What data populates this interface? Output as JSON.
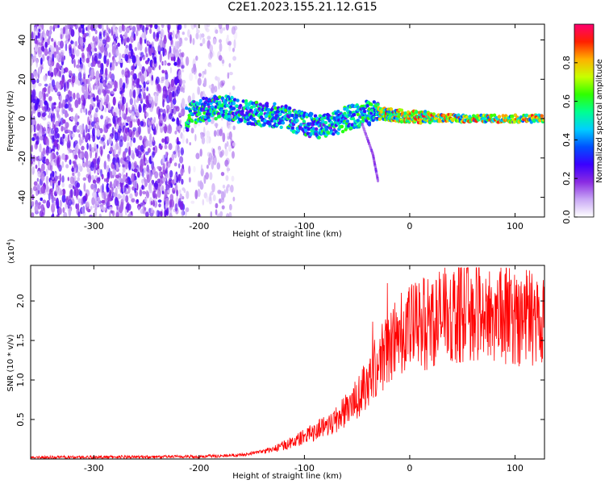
{
  "chart_data": [
    {
      "type": "heatmap",
      "title": "C2E1.2023.155.21.12.G15",
      "xlabel": "Height of straight line (km)",
      "ylabel": "Frequency (Hz)",
      "xlim": [
        -360,
        128
      ],
      "ylim": [
        -50,
        48
      ],
      "x_ticks": [
        -300,
        -200,
        -100,
        0,
        100
      ],
      "y_ticks": [
        -40,
        -20,
        0,
        20,
        40
      ],
      "colorbar": {
        "label": "Normalized spectral amplitude",
        "range": [
          0,
          1
        ],
        "ticks": [
          "0.0",
          "0.2",
          "0.4",
          "0.6",
          "0.8"
        ],
        "colors": [
          "#ffffff",
          "#c9a8f5",
          "#8a2be2",
          "#3a00ff",
          "#0050ff",
          "#00cfff",
          "#00ff90",
          "#30ff00",
          "#c8ff00",
          "#ffb000",
          "#ff2000",
          "#ff0070"
        ]
      },
      "features": {
        "noise_region_x": [
          -360,
          -165
        ],
        "signal_track": [
          {
            "x": -210,
            "y": 3
          },
          {
            "x": -180,
            "y": 6
          },
          {
            "x": -150,
            "y": 3
          },
          {
            "x": -120,
            "y": 1
          },
          {
            "x": -100,
            "y": -3
          },
          {
            "x": -80,
            "y": -4
          },
          {
            "x": -60,
            "y": 0
          },
          {
            "x": -40,
            "y": 3
          },
          {
            "x": -20,
            "y": 2
          },
          {
            "x": 0,
            "y": 1
          },
          {
            "x": 50,
            "y": 0
          },
          {
            "x": 128,
            "y": 0
          }
        ],
        "tail": [
          {
            "x": -45,
            "y": -3
          },
          {
            "x": -35,
            "y": -18
          },
          {
            "x": -30,
            "y": -32
          }
        ]
      }
    },
    {
      "type": "line",
      "xlabel": "Height of straight line (km)",
      "ylabel": "SNR (10 * v/v)",
      "scale_label": "(x10",
      "scale_exp": "4",
      "scale_close": ")",
      "xlim": [
        -360,
        128
      ],
      "ylim": [
        0,
        2.45
      ],
      "x_ticks": [
        -300,
        -200,
        -100,
        0,
        100
      ],
      "y_ticks": [
        "0.5",
        "1.0",
        "1.5",
        "2.0"
      ],
      "series": [
        {
          "color": "#ff0000",
          "envelope": [
            {
              "x": -360,
              "y": 0.02
            },
            {
              "x": -200,
              "y": 0.03
            },
            {
              "x": -160,
              "y": 0.05
            },
            {
              "x": -130,
              "y": 0.12
            },
            {
              "x": -110,
              "y": 0.22
            },
            {
              "x": -90,
              "y": 0.35
            },
            {
              "x": -70,
              "y": 0.5
            },
            {
              "x": -50,
              "y": 0.75
            },
            {
              "x": -40,
              "y": 1.0
            },
            {
              "x": -30,
              "y": 1.2
            },
            {
              "x": -20,
              "y": 1.4
            },
            {
              "x": -10,
              "y": 1.6
            },
            {
              "x": 0,
              "y": 1.65
            },
            {
              "x": 20,
              "y": 1.75
            },
            {
              "x": 40,
              "y": 1.85
            },
            {
              "x": 60,
              "y": 1.9
            },
            {
              "x": 80,
              "y": 1.85
            },
            {
              "x": 100,
              "y": 1.8
            },
            {
              "x": 128,
              "y": 1.8
            }
          ]
        }
      ]
    }
  ]
}
